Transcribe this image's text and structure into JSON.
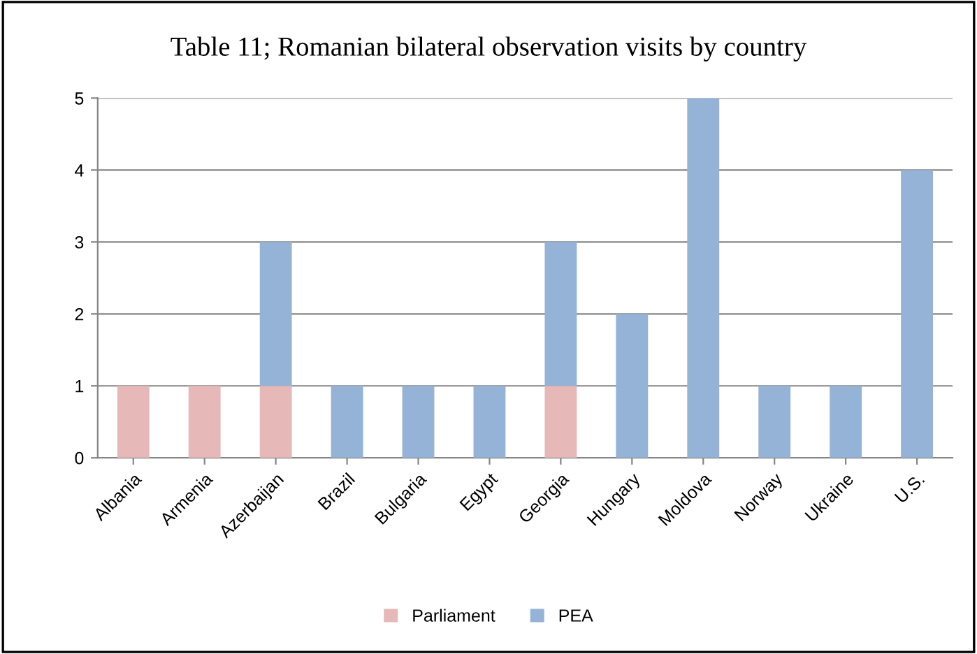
{
  "chart_data": {
    "type": "bar",
    "title": "Table 11; Romanian bilateral observation visits by country",
    "categories": [
      "Albania",
      "Armenia",
      "Azerbaijan",
      "Brazil",
      "Bulgaria",
      "Egypt",
      "Georgia",
      "Hungary",
      "Moldova",
      "Norway",
      "Ukraine",
      "U.S."
    ],
    "series": [
      {
        "name": "Parliament",
        "color": "#e6b9b8",
        "values": [
          1,
          1,
          1,
          0,
          0,
          0,
          1,
          0,
          0,
          0,
          0,
          0
        ]
      },
      {
        "name": "PEA",
        "color": "#95b3d7",
        "values": [
          0,
          0,
          2,
          1,
          1,
          1,
          2,
          2,
          5,
          1,
          1,
          4
        ]
      }
    ],
    "stacked": true,
    "ylim": [
      0,
      5
    ],
    "yticks": [
      0,
      1,
      2,
      3,
      4,
      5
    ],
    "grid": "y",
    "legend": "bottom"
  }
}
